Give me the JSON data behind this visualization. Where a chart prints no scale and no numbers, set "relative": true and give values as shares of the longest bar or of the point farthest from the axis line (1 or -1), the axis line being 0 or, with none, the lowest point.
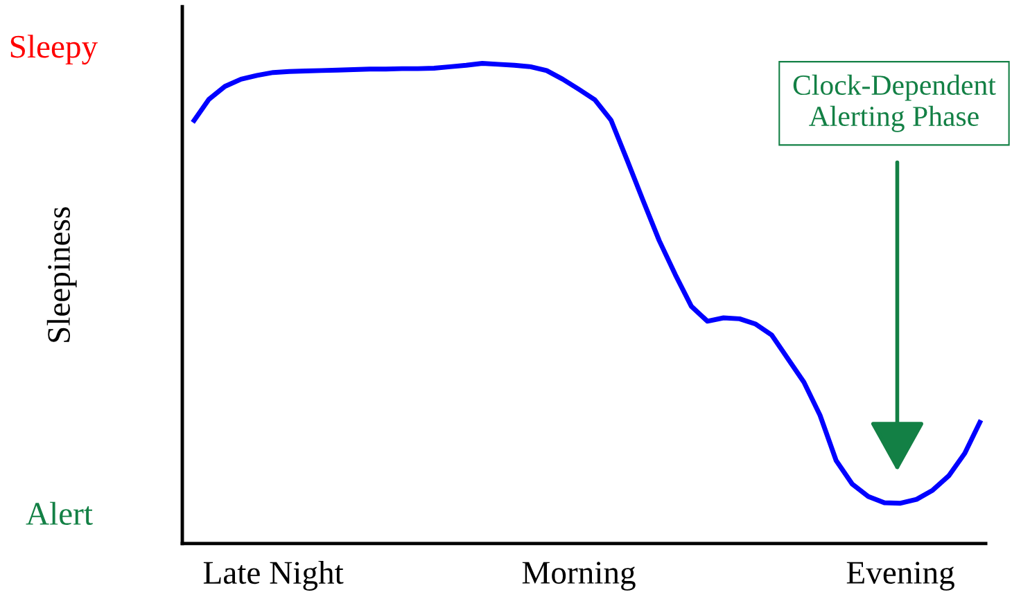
{
  "chart_data": {
    "type": "line",
    "relative": true,
    "ylabel": "Sleepiness",
    "categories": [
      null,
      null,
      null,
      null,
      null,
      "Late Night",
      null,
      null,
      null,
      null,
      null,
      null,
      null,
      null,
      null,
      null,
      null,
      null,
      null,
      null,
      null,
      null,
      null,
      null,
      "Morning",
      null,
      null,
      null,
      null,
      null,
      null,
      null,
      null,
      null,
      null,
      null,
      null,
      null,
      null,
      null,
      null,
      null,
      null,
      null,
      "Evening",
      null,
      null,
      null,
      null,
      null
    ],
    "series": [
      {
        "color": "#0000ff",
        "values": [
          0.877,
          0.925,
          0.952,
          0.967,
          0.975,
          0.981,
          0.983,
          0.984,
          0.985,
          0.986,
          0.987,
          0.988,
          0.988,
          0.989,
          0.989,
          0.99,
          0.993,
          0.996,
          1,
          0.998,
          0.996,
          0.993,
          0.985,
          0.967,
          0.946,
          0.924,
          0.882,
          0.799,
          0.714,
          0.631,
          0.56,
          0.494,
          0.463,
          0.47,
          0.468,
          0.457,
          0.434,
          0.385,
          0.336,
          0.267,
          0.173,
          0.124,
          0.098,
          0.085,
          0.084,
          0.092,
          0.111,
          0.141,
          0.188,
          0.257
        ]
      }
    ],
    "annotations": [
      "Sleepy",
      "Alert",
      "Clock-Dependent\nAlerting Phase"
    ],
    "grid": false,
    "legend": false,
    "marker": "none",
    "line_style": "solid"
  }
}
